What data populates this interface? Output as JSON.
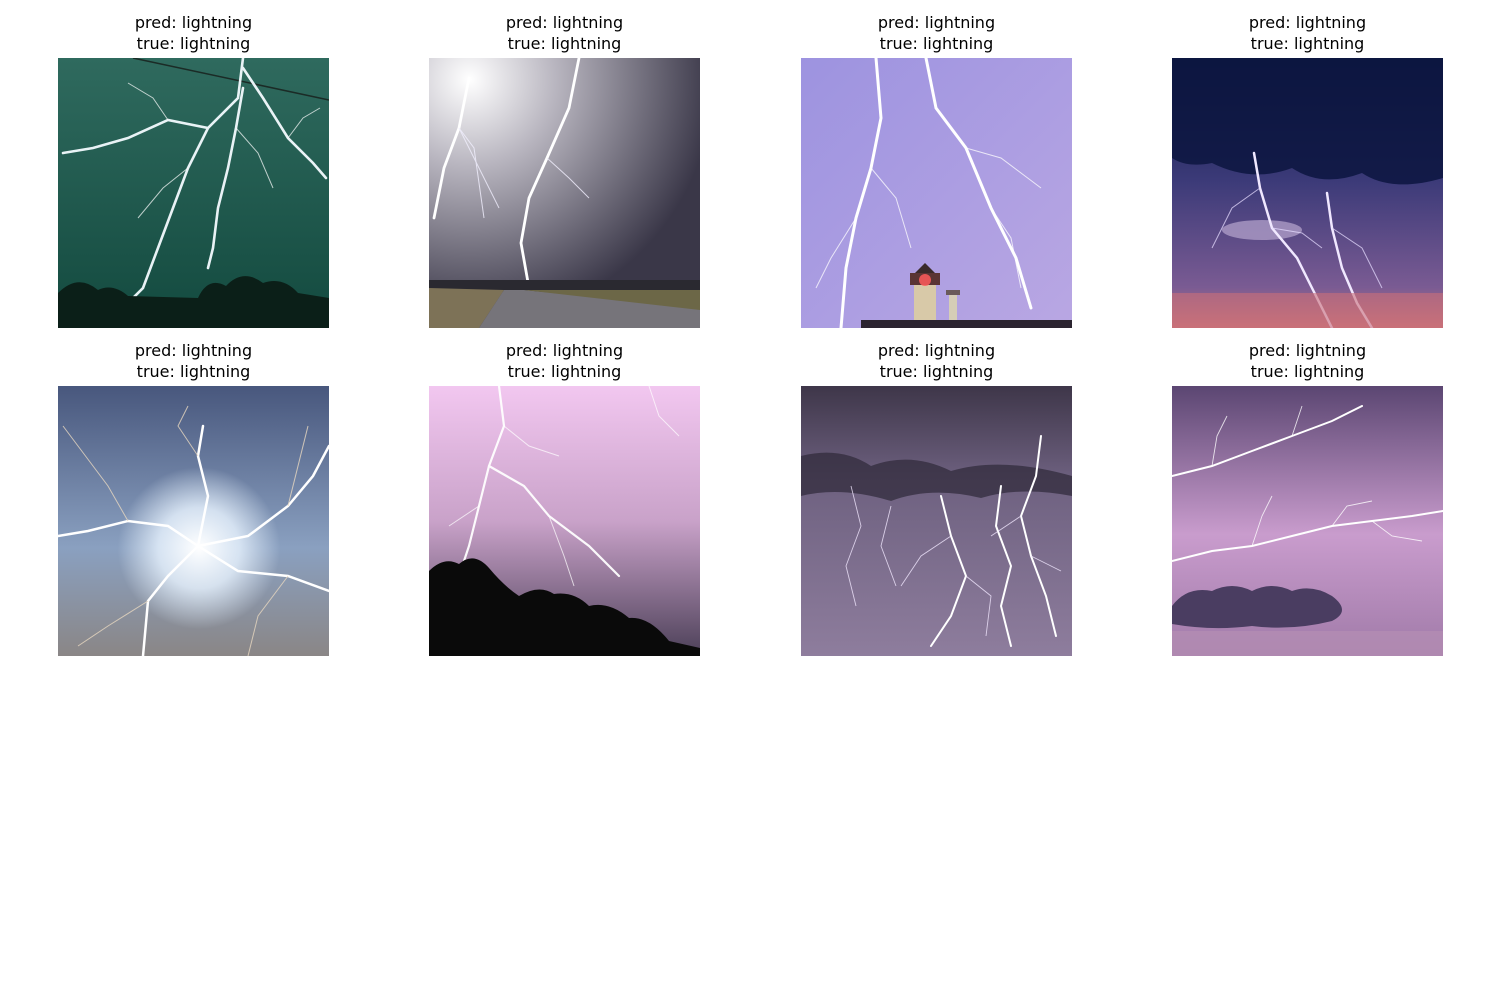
{
  "grid": {
    "panels": [
      {
        "pred": "pred: lightning",
        "true": "true: lightning",
        "scene": "green-sky lightning over trees",
        "palette": {
          "top": "#2f6a5e",
          "bottom": "#134a3f",
          "bolt": "#f4fbff",
          "ground": "#0b1f18"
        }
      },
      {
        "pred": "pred: lightning",
        "true": "true: lightning",
        "scene": "lightning over highway under grey clouds",
        "palette": {
          "top": "#e7e5ea",
          "bottom": "#3f3c4c",
          "bolt": "#ffffff",
          "ground": "#6b6862"
        }
      },
      {
        "pred": "pred: lightning",
        "true": "true: lightning",
        "scene": "violet sky lightning with lighthouse",
        "palette": {
          "top": "#a79bdf",
          "bottom": "#b6a4e2",
          "bolt": "#ffffff",
          "ground": "#2b2430"
        }
      },
      {
        "pred": "pred: lightning",
        "true": "true: lightning",
        "scene": "dark blue clouds with purple lightning",
        "palette": {
          "top": "#101b45",
          "bottom": "#7a5b93",
          "bolt": "#f0e8ff",
          "ground": "#c97277"
        }
      },
      {
        "pred": "pred: lightning",
        "true": "true: lightning",
        "scene": "bright burst lightning",
        "palette": {
          "top": "#48577d",
          "bottom": "#7b7f89",
          "bolt": "#ffffff",
          "ground": "#8a8686"
        }
      },
      {
        "pred": "pred: lightning",
        "true": "true: lightning",
        "scene": "pink sky lightning with tree silhouettes",
        "palette": {
          "top": "#f2c7f0",
          "bottom": "#6a5978",
          "bolt": "#ffffff",
          "ground": "#0a0a0a"
        }
      },
      {
        "pred": "pred: lightning",
        "true": "true: lightning",
        "scene": "stormy purple sky with many bolts",
        "palette": {
          "top": "#4b4158",
          "bottom": "#8e7d9d",
          "bolt": "#ffffff",
          "ground": "#6c5a7c"
        }
      },
      {
        "pred": "pred: lightning",
        "true": "true: lightning",
        "scene": "horizontal lightning over pink clouds",
        "palette": {
          "top": "#5b4672",
          "bottom": "#c99ccd",
          "bolt": "#ffffff",
          "ground": "#4a3d61"
        }
      }
    ]
  }
}
